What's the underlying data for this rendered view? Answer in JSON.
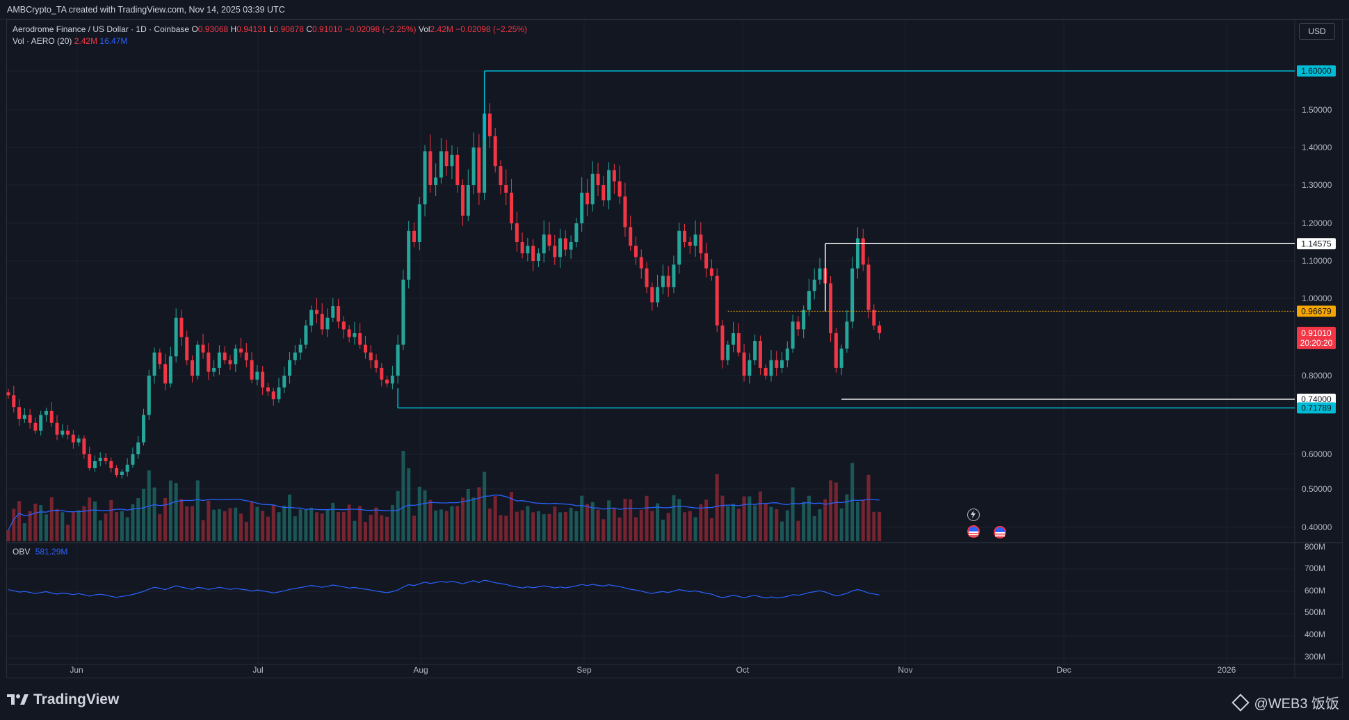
{
  "header": {
    "text": "AMBCrypto_TA created with TradingView.com, Nov 14, 2025 03:39 UTC"
  },
  "legend": {
    "symbol": "Aerodrome Finance / US Dollar · 1D · Coinbase",
    "o_label": "O",
    "o": "0.93068",
    "h_label": "H",
    "h": "0.94131",
    "l_label": "L",
    "l": "0.90878",
    "c_label": "C",
    "c": "0.91010",
    "change": "−0.02098 (−2.25%)",
    "vol_label": "Vol",
    "vol": "2.42M",
    "vol_change": "−0.02098 (−2.25%)",
    "vol_line": "Vol · AERO (20)",
    "vol_value": "2.42M",
    "vol_ma": "16.47M"
  },
  "currency_button": "USD",
  "obv": {
    "label": "OBV",
    "value": "581.29M"
  },
  "brand": "TradingView",
  "watermark": "@WEB3 饭饭",
  "colors": {
    "up": "#26a69a",
    "down": "#f23645",
    "line": "#2962ff",
    "cyan": "#00bcd4",
    "white": "#ffffff",
    "orange": "#f7a600",
    "bg": "#131722"
  },
  "chart_data": {
    "type": "candlestick",
    "symbol": "AERO/USD",
    "timeframe": "1D",
    "price_axis_ticks": [
      "1.50000",
      "1.40000",
      "1.30000",
      "1.20000",
      "1.10000",
      "1.00000",
      "0.80000",
      "0.60000",
      "0.50000",
      "0.40000"
    ],
    "price_axis_range": [
      0.36,
      1.72
    ],
    "time_axis_labels": [
      "Jun",
      "Jul",
      "Aug",
      "Sep",
      "Oct",
      "Nov",
      "Dec",
      "2026"
    ],
    "price_labels": [
      {
        "value": 1.6,
        "text": "1.60000",
        "color": "#00bcd4"
      },
      {
        "value": 1.14575,
        "text": "1.14575",
        "color": "#ffffff"
      },
      {
        "value": 0.96679,
        "text": "0.96679",
        "color": "#f7a600"
      },
      {
        "value": 0.74,
        "text": "0.74000",
        "color": "#ffffff"
      },
      {
        "value": 0.71789,
        "text": "0.71789",
        "color": "#00bcd4"
      }
    ],
    "current_price": {
      "value": 0.9101,
      "text": "0.91010",
      "countdown": "20:20:20"
    },
    "levels": [
      {
        "name": "resistance-1.60",
        "value": 1.6,
        "color": "#00bcd4",
        "from_index": 88
      },
      {
        "name": "resistance-1.14575",
        "value": 1.14575,
        "color": "#ffffff",
        "from_index": 151
      },
      {
        "name": "level-0.96679",
        "value": 0.96679,
        "color": "#f7a600",
        "from_index": 133
      },
      {
        "name": "support-0.74",
        "value": 0.74,
        "color": "#ffffff",
        "from_index": 154
      },
      {
        "name": "support-0.71789",
        "value": 0.71789,
        "color": "#00bcd4",
        "from_index": 72
      }
    ],
    "closes": [
      0.75,
      0.72,
      0.69,
      0.7,
      0.68,
      0.66,
      0.7,
      0.71,
      0.68,
      0.65,
      0.66,
      0.65,
      0.63,
      0.64,
      0.6,
      0.56,
      0.58,
      0.59,
      0.58,
      0.56,
      0.54,
      0.55,
      0.57,
      0.6,
      0.63,
      0.7,
      0.8,
      0.86,
      0.83,
      0.78,
      0.85,
      0.95,
      0.9,
      0.84,
      0.8,
      0.88,
      0.86,
      0.81,
      0.82,
      0.86,
      0.84,
      0.83,
      0.87,
      0.86,
      0.84,
      0.79,
      0.81,
      0.77,
      0.76,
      0.74,
      0.77,
      0.8,
      0.84,
      0.86,
      0.88,
      0.93,
      0.97,
      0.96,
      0.92,
      0.95,
      0.98,
      0.94,
      0.92,
      0.9,
      0.91,
      0.88,
      0.86,
      0.84,
      0.82,
      0.79,
      0.78,
      0.8,
      0.88,
      1.05,
      1.18,
      1.15,
      1.25,
      1.39,
      1.3,
      1.32,
      1.39,
      1.35,
      1.38,
      1.3,
      1.22,
      1.3,
      1.4,
      1.28,
      1.49,
      1.43,
      1.35,
      1.3,
      1.28,
      1.2,
      1.15,
      1.12,
      1.14,
      1.1,
      1.12,
      1.17,
      1.14,
      1.11,
      1.16,
      1.13,
      1.15,
      1.2,
      1.28,
      1.25,
      1.33,
      1.3,
      1.26,
      1.34,
      1.31,
      1.27,
      1.19,
      1.14,
      1.11,
      1.08,
      1.03,
      0.99,
      1.03,
      1.06,
      1.03,
      1.09,
      1.18,
      1.15,
      1.14,
      1.17,
      1.12,
      1.08,
      1.06,
      0.93,
      0.84,
      0.88,
      0.91,
      0.86,
      0.8,
      0.84,
      0.89,
      0.82,
      0.8,
      0.84,
      0.82,
      0.84,
      0.87,
      0.94,
      0.92,
      0.97,
      1.02,
      1.05,
      1.08,
      1.04,
      0.91,
      0.82,
      0.87,
      0.94,
      1.08,
      1.16,
      1.09,
      0.97,
      0.93,
      0.91
    ]
  }
}
